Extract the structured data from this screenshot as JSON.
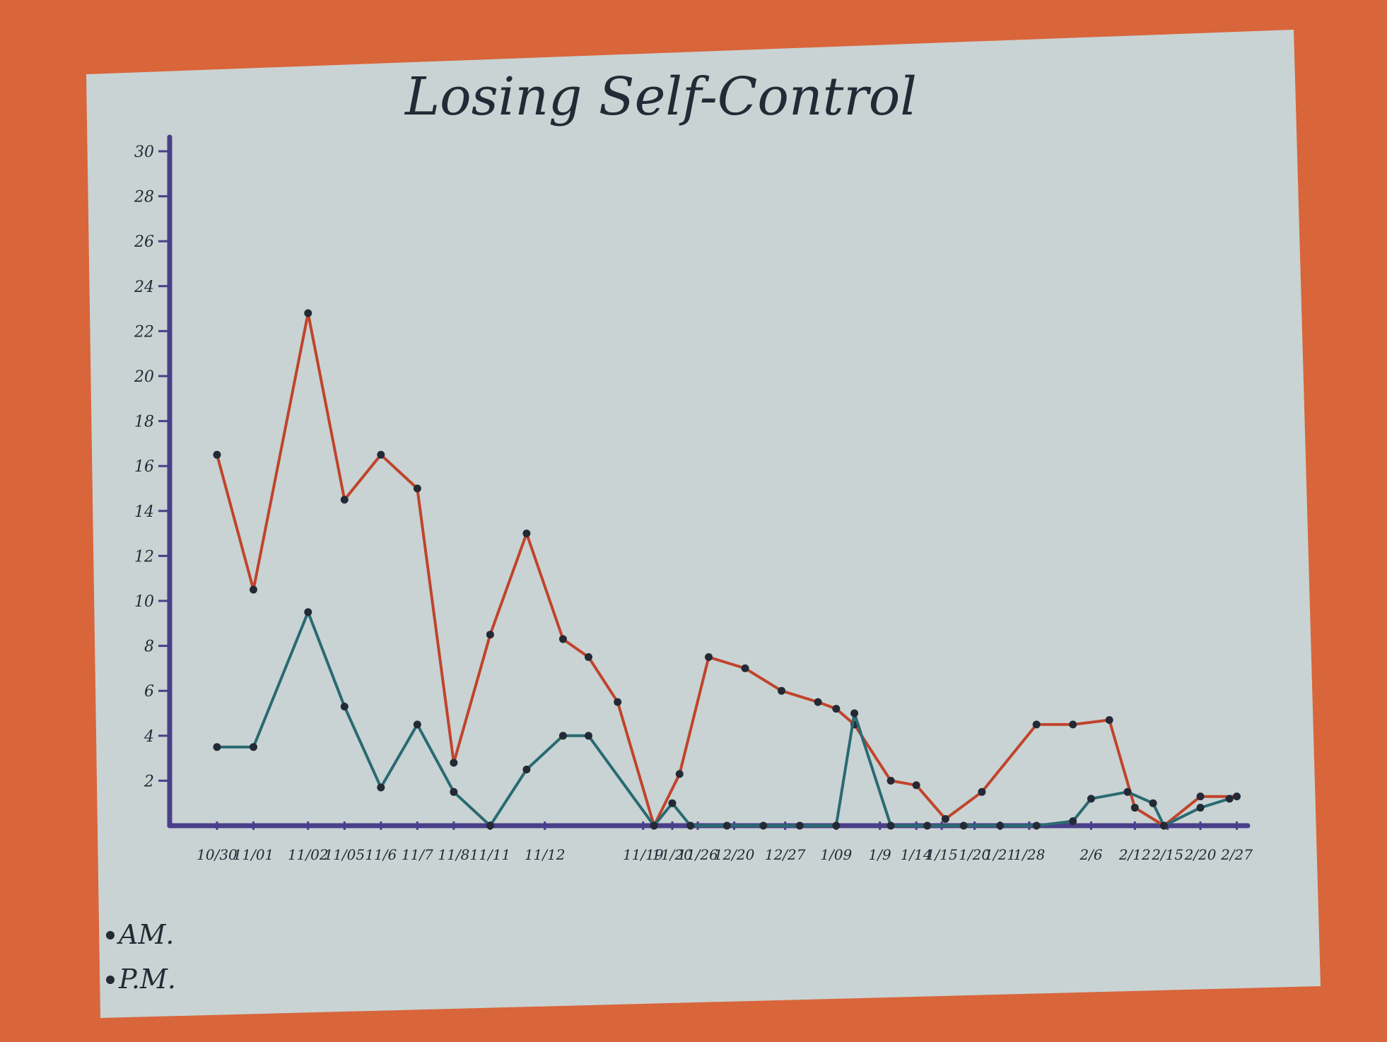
{
  "colors": {
    "background": "#d9653a",
    "paper": "#c9d3d3",
    "axis": "#4a3f8a",
    "am_line": "#c0442c",
    "pm_line": "#2a6a72",
    "ink": "#232a36"
  },
  "chart_data": {
    "type": "line",
    "title": "Losing Self-Control",
    "xlabel": "",
    "ylabel": "",
    "ylim": [
      0,
      30
    ],
    "yticks": [
      2,
      4,
      6,
      8,
      10,
      12,
      14,
      16,
      18,
      20,
      22,
      24,
      26,
      28,
      30
    ],
    "ytick_labels": [
      "2",
      "4",
      "6",
      "8",
      "10",
      "12",
      "14",
      "16",
      "18",
      "20",
      "22",
      "24",
      "26",
      "28",
      "30"
    ],
    "grid": false,
    "legend_position": "bottom-left",
    "legend": [
      {
        "label": "AM.",
        "series": "am"
      },
      {
        "label": "P.M.",
        "series": "pm"
      }
    ],
    "x_tick_labels": [
      {
        "x": 1,
        "label": "10/30"
      },
      {
        "x": 2,
        "label": "11/01"
      },
      {
        "x": 3.5,
        "label": "11/02"
      },
      {
        "x": 4.5,
        "label": "11/05"
      },
      {
        "x": 5.5,
        "label": "11/6"
      },
      {
        "x": 6.5,
        "label": "11/7"
      },
      {
        "x": 7.5,
        "label": "11/8"
      },
      {
        "x": 8.5,
        "label": "11/11"
      },
      {
        "x": 10,
        "label": "11/12"
      },
      {
        "x": 12.7,
        "label": "11/19"
      },
      {
        "x": 13.5,
        "label": "11/20"
      },
      {
        "x": 14.2,
        "label": "11/26"
      },
      {
        "x": 15.2,
        "label": "12/20"
      },
      {
        "x": 16.6,
        "label": "12/27"
      },
      {
        "x": 18,
        "label": "1/09"
      },
      {
        "x": 19.2,
        "label": "1/9"
      },
      {
        "x": 20.2,
        "label": "1/14"
      },
      {
        "x": 20.9,
        "label": "1/15"
      },
      {
        "x": 21.8,
        "label": "1/20"
      },
      {
        "x": 22.5,
        "label": "1/21"
      },
      {
        "x": 23.3,
        "label": "1/28"
      },
      {
        "x": 25,
        "label": "2/6"
      },
      {
        "x": 26.2,
        "label": "2/12"
      },
      {
        "x": 27.1,
        "label": "2/15"
      },
      {
        "x": 28,
        "label": "2/20"
      },
      {
        "x": 29,
        "label": "2/27"
      }
    ],
    "xlim": [
      -0.3,
      29.3
    ],
    "series": [
      {
        "id": "am",
        "name": "AM.",
        "color": "#c0442c",
        "points": [
          [
            1,
            16.5
          ],
          [
            2,
            10.5
          ],
          [
            3.5,
            22.8
          ],
          [
            4.5,
            14.5
          ],
          [
            5.5,
            16.5
          ],
          [
            6.5,
            15
          ],
          [
            7.5,
            2.8
          ],
          [
            8.5,
            8.5
          ],
          [
            9.5,
            13
          ],
          [
            10.5,
            8.3
          ],
          [
            11.2,
            7.5
          ],
          [
            12,
            5.5
          ],
          [
            13,
            0
          ],
          [
            13.7,
            2.3
          ],
          [
            14.5,
            7.5
          ],
          [
            15.5,
            7
          ],
          [
            16.5,
            6
          ],
          [
            17.5,
            5.5
          ],
          [
            18,
            5.2
          ],
          [
            18.5,
            4.5
          ],
          [
            19.5,
            2
          ],
          [
            20.2,
            1.8
          ],
          [
            21,
            0.3
          ],
          [
            22,
            1.5
          ],
          [
            23.5,
            4.5
          ],
          [
            24.5,
            4.5
          ],
          [
            25.5,
            4.7
          ],
          [
            26.2,
            0.8
          ],
          [
            27,
            0
          ],
          [
            28,
            1.3
          ],
          [
            29,
            1.3
          ]
        ]
      },
      {
        "id": "pm",
        "name": "P.M.",
        "color": "#2a6a72",
        "points": [
          [
            1,
            3.5
          ],
          [
            2,
            3.5
          ],
          [
            3.5,
            9.5
          ],
          [
            4.5,
            5.3
          ],
          [
            5.5,
            1.7
          ],
          [
            6.5,
            4.5
          ],
          [
            7.5,
            1.5
          ],
          [
            8.5,
            0
          ],
          [
            9.5,
            2.5
          ],
          [
            10.5,
            4
          ],
          [
            11.2,
            4
          ],
          [
            13,
            0
          ],
          [
            13.5,
            1
          ],
          [
            14,
            0
          ],
          [
            15,
            0
          ],
          [
            16,
            0
          ],
          [
            17,
            0
          ],
          [
            18,
            0
          ],
          [
            18.5,
            5
          ],
          [
            19.5,
            0
          ],
          [
            20.5,
            0
          ],
          [
            21.5,
            0
          ],
          [
            22.5,
            0
          ],
          [
            23.5,
            0
          ],
          [
            24.5,
            0.2
          ],
          [
            25,
            1.2
          ],
          [
            26,
            1.5
          ],
          [
            26.7,
            1
          ],
          [
            27,
            0
          ],
          [
            28,
            0.8
          ],
          [
            28.8,
            1.2
          ]
        ]
      }
    ]
  }
}
